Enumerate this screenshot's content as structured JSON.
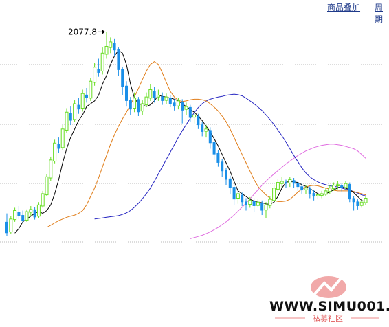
{
  "header": {
    "links": [
      {
        "label": "商品叠加"
      },
      {
        "label": "周期"
      }
    ]
  },
  "chart_data": {
    "type": "candlestick",
    "peak_label": "2077.8",
    "colors": {
      "up": "#66dd22",
      "down": "#1a8fe8",
      "ma5": "#000000",
      "ma10": "#e07c17",
      "ma20": "#2222c0",
      "ma60": "#e06ce0",
      "grid": "#b8b8b8"
    },
    "candles": [
      [
        1740,
        1720,
        1755,
        1715
      ],
      [
        1722,
        1745,
        1750,
        1718
      ],
      [
        1744,
        1760,
        1765,
        1740
      ],
      [
        1758,
        1750,
        1768,
        1745
      ],
      [
        1752,
        1742,
        1760,
        1738
      ],
      [
        1743,
        1758,
        1762,
        1740
      ],
      [
        1757,
        1762,
        1768,
        1750
      ],
      [
        1762,
        1748,
        1766,
        1744
      ],
      [
        1750,
        1770,
        1775,
        1746
      ],
      [
        1768,
        1790,
        1795,
        1765
      ],
      [
        1788,
        1820,
        1825,
        1785
      ],
      [
        1818,
        1850,
        1856,
        1812
      ],
      [
        1848,
        1880,
        1886,
        1844
      ],
      [
        1878,
        1870,
        1890,
        1862
      ],
      [
        1872,
        1905,
        1912,
        1868
      ],
      [
        1903,
        1935,
        1942,
        1898
      ],
      [
        1933,
        1920,
        1945,
        1912
      ],
      [
        1922,
        1950,
        1956,
        1918
      ],
      [
        1948,
        1940,
        1960,
        1932
      ],
      [
        1942,
        1968,
        1975,
        1936
      ],
      [
        1966,
        1960,
        1978,
        1952
      ],
      [
        1960,
        1990,
        1996,
        1955
      ],
      [
        1988,
        2015,
        2022,
        1982
      ],
      [
        2012,
        2005,
        2030,
        1998
      ],
      [
        2008,
        2040,
        2050,
        2002
      ],
      [
        2038,
        2052,
        2077.8,
        2030
      ],
      [
        2050,
        2060,
        2068,
        2040
      ],
      [
        2058,
        2045,
        2065,
        2035
      ],
      [
        2047,
        2010,
        2050,
        2000
      ],
      [
        2012,
        1980,
        2015,
        1965
      ],
      [
        1982,
        1955,
        1990,
        1945
      ],
      [
        1957,
        1940,
        1962,
        1930
      ],
      [
        1942,
        1960,
        1970,
        1935
      ],
      [
        1958,
        1935,
        1962,
        1928
      ],
      [
        1937,
        1950,
        1956,
        1930
      ],
      [
        1948,
        1962,
        1970,
        1944
      ],
      [
        1960,
        1975,
        1985,
        1955
      ],
      [
        1973,
        1960,
        1980,
        1952
      ],
      [
        1962,
        1965,
        1975,
        1955
      ],
      [
        1963,
        1955,
        1970,
        1948
      ],
      [
        1956,
        1962,
        1968,
        1950
      ],
      [
        1960,
        1950,
        1965,
        1944
      ],
      [
        1952,
        1945,
        1958,
        1938
      ],
      [
        1946,
        1955,
        1960,
        1940
      ],
      [
        1953,
        1938,
        1958,
        1915
      ],
      [
        1940,
        1945,
        1952,
        1930
      ],
      [
        1944,
        1925,
        1948,
        1918
      ],
      [
        1926,
        1930,
        1935,
        1915
      ],
      [
        1928,
        1912,
        1932,
        1905
      ],
      [
        1913,
        1900,
        1918,
        1892
      ],
      [
        1901,
        1905,
        1912,
        1890
      ],
      [
        1903,
        1880,
        1908,
        1870
      ],
      [
        1882,
        1860,
        1885,
        1850
      ],
      [
        1862,
        1845,
        1868,
        1838
      ],
      [
        1847,
        1830,
        1852,
        1820
      ],
      [
        1832,
        1815,
        1836,
        1805
      ],
      [
        1817,
        1800,
        1822,
        1790
      ],
      [
        1802,
        1780,
        1806,
        1770
      ],
      [
        1782,
        1790,
        1795,
        1772
      ],
      [
        1788,
        1775,
        1792,
        1768
      ],
      [
        1776,
        1770,
        1782,
        1760
      ],
      [
        1771,
        1778,
        1784,
        1765
      ],
      [
        1777,
        1768,
        1782,
        1758
      ],
      [
        1769,
        1775,
        1780,
        1765
      ],
      [
        1774,
        1760,
        1778,
        1752
      ],
      [
        1761,
        1770,
        1775,
        1746
      ],
      [
        1769,
        1780,
        1786,
        1764
      ],
      [
        1778,
        1800,
        1806,
        1774
      ],
      [
        1798,
        1810,
        1816,
        1794
      ],
      [
        1808,
        1812,
        1820,
        1800
      ],
      [
        1811,
        1808,
        1815,
        1800
      ],
      [
        1809,
        1815,
        1820,
        1802
      ],
      [
        1814,
        1808,
        1818,
        1800
      ],
      [
        1809,
        1802,
        1812,
        1795
      ],
      [
        1803,
        1796,
        1808,
        1790
      ],
      [
        1797,
        1800,
        1805,
        1790
      ],
      [
        1799,
        1790,
        1803,
        1782
      ],
      [
        1791,
        1785,
        1796,
        1778
      ],
      [
        1786,
        1788,
        1792,
        1780
      ],
      [
        1787,
        1790,
        1795,
        1782
      ],
      [
        1789,
        1795,
        1800,
        1785
      ],
      [
        1794,
        1800,
        1805,
        1790
      ],
      [
        1799,
        1805,
        1810,
        1795
      ],
      [
        1804,
        1806,
        1812,
        1798
      ],
      [
        1805,
        1800,
        1808,
        1794
      ],
      [
        1801,
        1808,
        1812,
        1796
      ],
      [
        1807,
        1780,
        1810,
        1775
      ],
      [
        1782,
        1775,
        1786,
        1760
      ],
      [
        1776,
        1768,
        1780,
        1762
      ],
      [
        1769,
        1775,
        1780,
        1765
      ],
      [
        1774,
        1782,
        1786,
        1770
      ]
    ],
    "ma5": [
      1720,
      1728,
      1740,
      1745,
      1750,
      1755,
      1758,
      1755,
      1760,
      1770,
      1790,
      1815,
      1845,
      1870,
      1890,
      1905,
      1920,
      1930,
      1945,
      1950,
      1955,
      1965,
      1985,
      2000,
      2020,
      2035,
      2045,
      2040,
      2020,
      1985,
      1960,
      1950,
      1948,
      1945,
      1948,
      1955,
      1965,
      1963,
      1962,
      1960,
      1958,
      1955,
      1950,
      1945,
      1940,
      1935,
      1928,
      1920,
      1910,
      1900,
      1888,
      1875,
      1860,
      1845,
      1830,
      1812,
      1795,
      1790,
      1785,
      1780,
      1777,
      1775,
      1774,
      1772,
      1771,
      1775,
      1785,
      1800,
      1810,
      1812,
      1811,
      1810,
      1806,
      1803,
      1799,
      1795,
      1790,
      1788,
      1790,
      1793,
      1797,
      1800,
      1803,
      1800,
      1797,
      1792,
      1785,
      1778,
      1776
    ],
    "ma10": [
      1730,
      1734,
      1738,
      1742,
      1745,
      1748,
      1750,
      1752,
      1755,
      1760,
      1770,
      1785,
      1800,
      1818,
      1838,
      1858,
      1878,
      1895,
      1910,
      1923,
      1935,
      1948,
      1962,
      1977,
      1993,
      2008,
      2020,
      2025,
      2020,
      2005,
      1988,
      1972,
      1962,
      1956,
      1954,
      1955,
      1957,
      1958,
      1958,
      1957,
      1955,
      1950,
      1944,
      1937,
      1928,
      1918,
      1905,
      1890,
      1875,
      1860,
      1845,
      1830,
      1815,
      1803,
      1795,
      1788,
      1782,
      1778,
      1776,
      1776,
      1777,
      1780,
      1786,
      1793,
      1798,
      1802,
      1804,
      1805,
      1804,
      1802,
      1800,
      1798,
      1796,
      1795,
      1795,
      1795,
      1795,
      1794,
      1792,
      1790,
      1788
    ],
    "ma20": [
      1745,
      1746,
      1747,
      1748,
      1749,
      1750,
      1751,
      1753,
      1756,
      1760,
      1766,
      1773,
      1781,
      1790,
      1800,
      1812,
      1825,
      1838,
      1851,
      1864,
      1877,
      1890,
      1902,
      1913,
      1924,
      1934,
      1943,
      1950,
      1955,
      1958,
      1960,
      1962,
      1963,
      1965,
      1966,
      1967,
      1966,
      1964,
      1960,
      1955,
      1950,
      1944,
      1938,
      1930,
      1922,
      1913,
      1903,
      1893,
      1882,
      1870,
      1858,
      1847,
      1836,
      1827,
      1820,
      1815,
      1811,
      1808,
      1806,
      1804,
      1803,
      1802,
      1800,
      1798,
      1796,
      1794,
      1791,
      1788,
      1786
    ],
    "ma60": [
      1710,
      1712,
      1714,
      1716,
      1719,
      1722,
      1726,
      1730,
      1735,
      1740,
      1746,
      1752,
      1759,
      1766,
      1773,
      1781,
      1789,
      1797,
      1805,
      1812,
      1819,
      1825,
      1831,
      1837,
      1843,
      1848,
      1853,
      1858,
      1862,
      1866,
      1869,
      1872,
      1874,
      1876,
      1877,
      1878,
      1878,
      1877,
      1876,
      1874,
      1872,
      1870,
      1866,
      1860,
      1853
    ]
  }
}
